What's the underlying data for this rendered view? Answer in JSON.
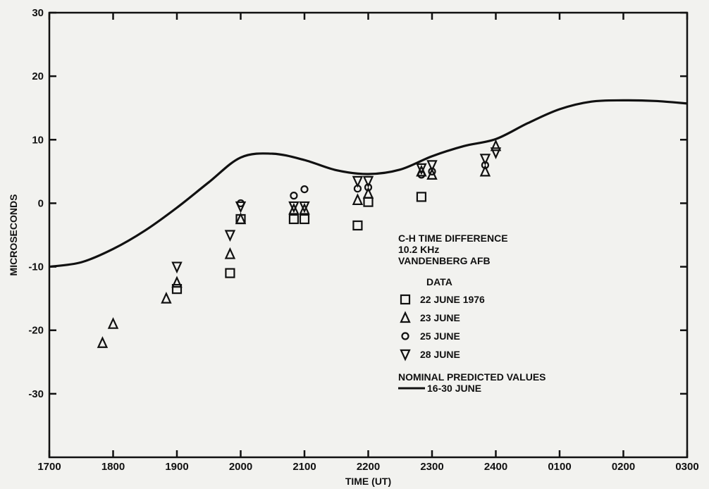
{
  "chart_data": {
    "type": "scatter",
    "title": "",
    "xlabel": "TIME (UT)",
    "ylabel": "MICROSECONDS",
    "x_ticks": [
      "1700",
      "1800",
      "1900",
      "2000",
      "2100",
      "2200",
      "2300",
      "2400",
      "0100",
      "0200",
      "0300"
    ],
    "y_ticks": [
      30,
      20,
      10,
      0,
      -10,
      -20,
      -30
    ],
    "xlim": [
      "1700",
      "0300"
    ],
    "ylim": [
      -40,
      30
    ],
    "grid": false,
    "legend_location": "center-right",
    "legend": {
      "heading": [
        "C-H TIME DIFFERENCE",
        "10.2 KHz",
        "VANDENBERG AFB"
      ],
      "data_label": "DATA",
      "predicted_label": "NOMINAL PREDICTED VALUES",
      "predicted_range": "16-30 JUNE"
    },
    "series": [
      {
        "name": "22 JUNE 1976",
        "marker": "square",
        "points": [
          [
            "1900",
            -13.5
          ],
          [
            "1950",
            -11
          ],
          [
            "2000",
            -2.5
          ],
          [
            "2050",
            -2.5
          ],
          [
            "2100",
            -2.5
          ],
          [
            "2150",
            -3.5
          ],
          [
            "2200",
            0.2
          ],
          [
            "2250",
            1
          ]
        ]
      },
      {
        "name": "23 JUNE",
        "marker": "triangle-up",
        "points": [
          [
            "1750",
            -22
          ],
          [
            "1800",
            -19
          ],
          [
            "1850",
            -15
          ],
          [
            "1900",
            -12.5
          ],
          [
            "1950",
            -8
          ],
          [
            "2000",
            -2.5
          ],
          [
            "2050",
            -1
          ],
          [
            "2100",
            -1
          ],
          [
            "2150",
            0.5
          ],
          [
            "2200",
            1.5
          ],
          [
            "2250",
            5
          ],
          [
            "2300",
            4.5
          ],
          [
            "2350",
            5
          ],
          [
            "2400",
            9
          ]
        ]
      },
      {
        "name": "25 JUNE",
        "marker": "circle",
        "points": [
          [
            "2000",
            0
          ],
          [
            "2050",
            1.2
          ],
          [
            "2100",
            2.2
          ],
          [
            "2150",
            2.3
          ],
          [
            "2200",
            2.5
          ],
          [
            "2250",
            4.5
          ],
          [
            "2300",
            5
          ],
          [
            "2350",
            6
          ]
        ]
      },
      {
        "name": "28 JUNE",
        "marker": "triangle-down",
        "points": [
          [
            "1900",
            -10
          ],
          [
            "1950",
            -5
          ],
          [
            "2000",
            -0.5
          ],
          [
            "2050",
            -0.5
          ],
          [
            "2100",
            -0.5
          ],
          [
            "2150",
            3.5
          ],
          [
            "2200",
            3.5
          ],
          [
            "2250",
            5.5
          ],
          [
            "2300",
            6
          ],
          [
            "2350",
            7
          ],
          [
            "2400",
            8
          ]
        ]
      }
    ],
    "predicted_curve": {
      "name": "16-30 JUNE",
      "points": [
        [
          "1700",
          -10
        ],
        [
          "1730",
          -9.3
        ],
        [
          "1800",
          -7.2
        ],
        [
          "1830",
          -4.3
        ],
        [
          "1900",
          -0.7
        ],
        [
          "1930",
          3.3
        ],
        [
          "2000",
          7.2
        ],
        [
          "2030",
          7.8
        ],
        [
          "2100",
          6.8
        ],
        [
          "2130",
          5.2
        ],
        [
          "2200",
          4.6
        ],
        [
          "2230",
          5.3
        ],
        [
          "2300",
          7.4
        ],
        [
          "2330",
          9
        ],
        [
          "2400",
          10.1
        ],
        [
          "0030",
          12.6
        ],
        [
          "0100",
          14.8
        ],
        [
          "0130",
          16
        ],
        [
          "0200",
          16.2
        ],
        [
          "0230",
          16.1
        ],
        [
          "0300",
          15.7
        ]
      ]
    }
  }
}
